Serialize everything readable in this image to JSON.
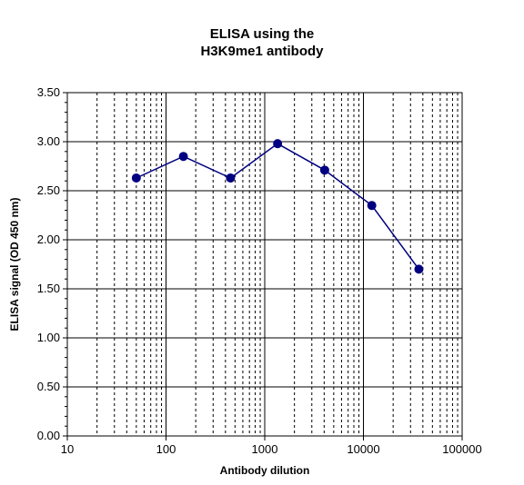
{
  "chart_data": {
    "type": "line",
    "title_lines": [
      "ELISA using the",
      "H3K9me1 antibody"
    ],
    "xlabel": "Antibody dilution",
    "ylabel": "ELISA signal (OD 450 nm)",
    "x_scale": "log",
    "xlim": [
      10,
      100000
    ],
    "ylim": [
      0,
      3.5
    ],
    "x_tick_labels": [
      "10",
      "100",
      "1000",
      "10000",
      "100000"
    ],
    "y_tick_labels": [
      "0.00",
      "0.50",
      "1.00",
      "1.50",
      "2.00",
      "2.50",
      "3.00",
      "3.50"
    ],
    "grid": true,
    "legend": "none",
    "series": [
      {
        "color": "#000080",
        "x": [
          50,
          150,
          450,
          1350,
          4050,
          12150,
          36450
        ],
        "y": [
          2.63,
          2.85,
          2.63,
          2.98,
          2.71,
          2.35,
          1.7
        ]
      }
    ]
  }
}
